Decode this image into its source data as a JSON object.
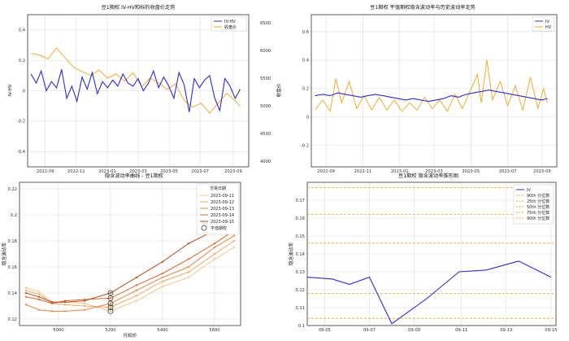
{
  "chart_data": [
    {
      "type": "line",
      "title": "豆1期权 IV-HV和标的收盘价走势",
      "xlabel": "",
      "ylabel": "IV-HV",
      "y2label": "收盘价",
      "x_ticks": [
        "2022-09",
        "2022-11",
        "2023-01",
        "2023-03",
        "2023-05",
        "2023-07",
        "2023-09"
      ],
      "xlim": [
        0,
        13
      ],
      "ylim": [
        -0.5,
        0.5
      ],
      "y_ticks": [
        -0.4,
        -0.2,
        0.0,
        0.2,
        0.4
      ],
      "y2lim": [
        3900,
        4650
      ],
      "y2_ticks": [
        4000,
        4500,
        5000,
        5500,
        6000,
        6500
      ],
      "y2_tick_labels": [
        "4000",
        "4500",
        "5000",
        "5500",
        "6000",
        "6500"
      ],
      "series": [
        {
          "name": "IV-HV",
          "color": "#2b2bdc",
          "axis": "left",
          "x": [
            0.2,
            0.5,
            0.8,
            1.1,
            1.4,
            1.7,
            2.0,
            2.3,
            2.6,
            2.9,
            3.2,
            3.5,
            3.8,
            4.1,
            4.4,
            4.7,
            5.0,
            5.3,
            5.6,
            5.9,
            6.2,
            6.5,
            6.8,
            7.1,
            7.4,
            7.7,
            8.0,
            8.3,
            8.6,
            8.9,
            9.2,
            9.5,
            9.8,
            10.1,
            10.4,
            10.7,
            11.0,
            11.3,
            11.6,
            11.9,
            12.2,
            12.5
          ],
          "values": [
            0.11,
            0.05,
            0.13,
            0.0,
            0.06,
            0.02,
            0.14,
            -0.05,
            0.03,
            -0.07,
            0.09,
            0.01,
            0.12,
            -0.02,
            0.06,
            0.02,
            0.07,
            0.03,
            0.11,
            0.05,
            0.03,
            0.08,
            0.0,
            0.05,
            0.13,
            0.02,
            0.09,
            0.03,
            -0.05,
            0.12,
            0.04,
            -0.14,
            0.08,
            0.02,
            0.07,
            0.1,
            -0.05,
            -0.13,
            0.08,
            0.03,
            -0.05,
            0.01
          ]
        },
        {
          "name": "收盘价",
          "color": "#f2a31b",
          "axis": "right",
          "x": [
            0.2,
            0.7,
            1.2,
            1.7,
            2.2,
            2.7,
            3.2,
            3.7,
            4.2,
            4.7,
            5.2,
            5.7,
            6.2,
            6.7,
            7.2,
            7.7,
            8.2,
            8.7,
            9.2,
            9.7,
            10.2,
            10.7,
            11.2,
            11.7,
            12.2,
            12.5
          ],
          "values": [
            5950,
            5920,
            5850,
            6050,
            5870,
            5700,
            5620,
            5550,
            5650,
            5500,
            5580,
            5450,
            5600,
            5350,
            5500,
            5420,
            5300,
            5400,
            5100,
            4980,
            5050,
            4870,
            5050,
            5230,
            5100,
            4990
          ]
        }
      ]
    },
    {
      "type": "line",
      "title": "豆1期权 平值期权隐含波动率与历史波动率走势",
      "xlabel": "",
      "ylabel": "",
      "x_ticks": [
        "2022-09",
        "2022-11",
        "2023-01",
        "2023-03",
        "2023-05",
        "2023-07",
        "2023-09"
      ],
      "xlim": [
        0,
        13
      ],
      "ylim": [
        -0.35,
        0.72
      ],
      "y_ticks": [
        -0.2,
        0.0,
        0.2,
        0.4,
        0.6
      ],
      "series": [
        {
          "name": "IV",
          "color": "#2b2bdc",
          "x": [
            0.2,
            0.6,
            1.0,
            1.4,
            1.8,
            2.2,
            2.6,
            3.0,
            3.4,
            3.8,
            4.2,
            4.6,
            5.0,
            5.4,
            5.8,
            6.2,
            6.6,
            7.0,
            7.4,
            7.8,
            8.2,
            8.6,
            9.0,
            9.4,
            9.8,
            10.2,
            10.6,
            11.0,
            11.4,
            11.8,
            12.2,
            12.5
          ],
          "values": [
            0.15,
            0.16,
            0.15,
            0.17,
            0.16,
            0.15,
            0.14,
            0.15,
            0.16,
            0.15,
            0.14,
            0.13,
            0.12,
            0.13,
            0.12,
            0.11,
            0.12,
            0.13,
            0.15,
            0.14,
            0.16,
            0.17,
            0.18,
            0.19,
            0.18,
            0.17,
            0.16,
            0.15,
            0.14,
            0.13,
            0.12,
            0.13
          ]
        },
        {
          "name": "HV",
          "color": "#f2a31b",
          "x": [
            0.2,
            0.6,
            1.0,
            1.3,
            1.6,
            2.0,
            2.4,
            2.8,
            3.2,
            3.6,
            4.0,
            4.4,
            4.8,
            5.2,
            5.6,
            6.0,
            6.4,
            6.8,
            7.2,
            7.6,
            8.0,
            8.4,
            8.8,
            9.0,
            9.3,
            9.6,
            10.0,
            10.4,
            10.8,
            11.2,
            11.6,
            12.0,
            12.3,
            12.5
          ],
          "values": [
            0.05,
            0.12,
            0.04,
            0.27,
            0.1,
            0.25,
            0.06,
            0.15,
            0.05,
            0.14,
            0.05,
            0.12,
            0.04,
            0.1,
            0.05,
            0.14,
            0.06,
            0.12,
            0.04,
            0.16,
            0.06,
            0.18,
            0.3,
            0.1,
            0.4,
            0.12,
            0.25,
            0.08,
            0.22,
            0.05,
            0.28,
            0.06,
            0.2,
            0.1
          ]
        }
      ]
    },
    {
      "type": "line",
      "title": "隐含波动率曲线 - 豆1期权",
      "xlabel": "行权价",
      "ylabel": "隐含波动率",
      "x_ticks": [
        5000,
        5200,
        5400,
        5600
      ],
      "xlim": [
        4850,
        5700
      ],
      "ylim": [
        0.115,
        0.225
      ],
      "y_ticks": [
        0.12,
        0.14,
        0.16,
        0.18,
        0.2,
        0.22
      ],
      "legend_title": "交易日期",
      "atm_label": "平值期权",
      "atm_strike": 5200,
      "x": [
        4875,
        4925,
        4975,
        5025,
        5100,
        5200,
        5300,
        5400,
        5500,
        5600,
        5675
      ],
      "series": [
        {
          "name": "2023-09-11",
          "color": "#f6c48c",
          "values": [
            0.144,
            0.141,
            0.133,
            0.133,
            0.132,
            0.126,
            0.134,
            0.145,
            0.152,
            0.166,
            0.175
          ]
        },
        {
          "name": "2023-09-12",
          "color": "#f2a766",
          "values": [
            0.142,
            0.139,
            0.132,
            0.131,
            0.13,
            0.129,
            0.138,
            0.149,
            0.156,
            0.17,
            0.18
          ]
        },
        {
          "name": "2023-09-13",
          "color": "#e9843d",
          "values": [
            0.131,
            0.127,
            0.126,
            0.126,
            0.127,
            0.132,
            0.142,
            0.152,
            0.16,
            0.175,
            0.184
          ]
        },
        {
          "name": "2023-09-14",
          "color": "#d9662a",
          "values": [
            0.137,
            0.135,
            0.132,
            0.134,
            0.135,
            0.136,
            0.146,
            0.155,
            0.166,
            0.178,
            0.188
          ]
        },
        {
          "name": "2023-09-15",
          "color": "#b84a1e",
          "values": [
            0.14,
            0.137,
            0.133,
            0.133,
            0.134,
            0.14,
            0.152,
            0.164,
            0.178,
            0.188,
            0.2
          ]
        }
      ],
      "atm_values": [
        0.126,
        0.129,
        0.132,
        0.136,
        0.14
      ]
    },
    {
      "type": "line",
      "title": "豆1期权 隐含波动率锥形图",
      "xlabel": "",
      "ylabel": "隐含波动率",
      "x_ticks": [
        "09-05",
        "09-07",
        "09-09",
        "09-11",
        "09-13",
        "09-15"
      ],
      "xlim": [
        0,
        10
      ],
      "ylim": [
        0.1,
        0.18
      ],
      "y_ticks": [
        0.1,
        0.11,
        0.12,
        0.13,
        0.14,
        0.15,
        0.16,
        0.17
      ],
      "series": [
        {
          "name": "IV",
          "color": "#2b2bdc",
          "x": [
            0.0,
            1.0,
            1.7,
            2.5,
            3.4,
            4.8,
            6.1,
            7.2,
            8.5,
            9.8
          ],
          "values": [
            0.127,
            0.126,
            0.123,
            0.127,
            0.101,
            0.115,
            0.13,
            0.131,
            0.136,
            0.127
          ]
        }
      ],
      "reference_lines": [
        {
          "name": "90th 分位数",
          "value": 0.177,
          "color": "#f2a31b"
        },
        {
          "name": "25th 分位数",
          "value": 0.162,
          "color": "#f2a31b"
        },
        {
          "name": "50th 分位数",
          "value": 0.146,
          "color": "#f2a31b"
        },
        {
          "name": "75th 分位数",
          "value": 0.118,
          "color": "#f2a31b"
        },
        {
          "name": "90th 分位数",
          "value": 0.104,
          "color": "#f2a31b"
        }
      ]
    }
  ]
}
